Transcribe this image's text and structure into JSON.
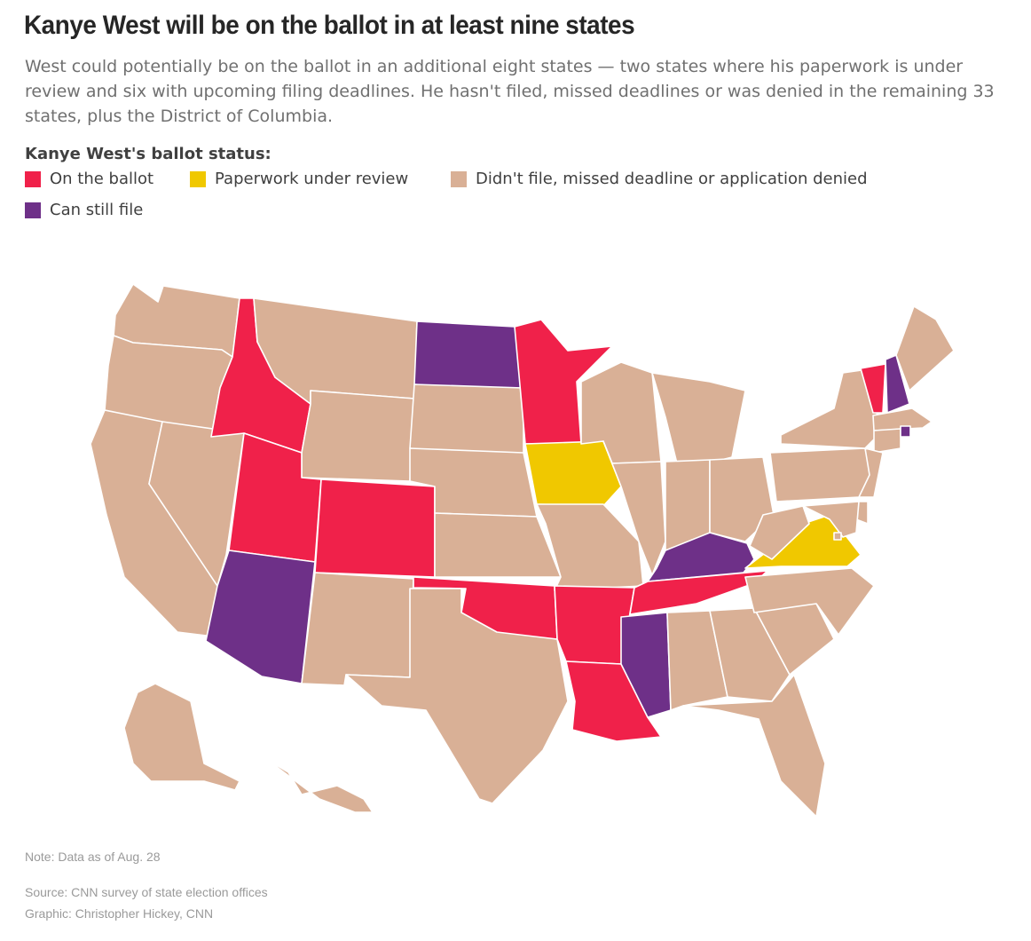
{
  "header": {
    "title": "Kanye West will be on the ballot in at least nine states",
    "subtitle": "West could potentially be on the ballot in an additional eight states — two states where his paperwork is under review and six with upcoming filing deadlines. He hasn't filed, missed deadlines or was denied in the remaining 33 states, plus the District of Columbia."
  },
  "legend": {
    "title": "Kanye West's ballot status:",
    "items": [
      {
        "key": "on_ballot",
        "label": "On the ballot",
        "color": "#f0214a"
      },
      {
        "key": "review",
        "label": "Paperwork under review",
        "color": "#f0c800"
      },
      {
        "key": "denied",
        "label": "Didn't file, missed deadline or application denied",
        "color": "#d9b096"
      },
      {
        "key": "can_file",
        "label": "Can still file",
        "color": "#6e3088"
      }
    ]
  },
  "status_colors": {
    "on_ballot": "#f0214a",
    "review": "#f0c800",
    "denied": "#d9b096",
    "can_file": "#6e3088"
  },
  "states": [
    {
      "id": "WA",
      "status": "denied"
    },
    {
      "id": "OR",
      "status": "denied"
    },
    {
      "id": "CA",
      "status": "denied"
    },
    {
      "id": "NV",
      "status": "denied"
    },
    {
      "id": "ID",
      "status": "on_ballot"
    },
    {
      "id": "MT",
      "status": "denied"
    },
    {
      "id": "WY",
      "status": "denied"
    },
    {
      "id": "UT",
      "status": "on_ballot"
    },
    {
      "id": "CO",
      "status": "on_ballot"
    },
    {
      "id": "AZ",
      "status": "can_file"
    },
    {
      "id": "NM",
      "status": "denied"
    },
    {
      "id": "ND",
      "status": "can_file"
    },
    {
      "id": "SD",
      "status": "denied"
    },
    {
      "id": "NE",
      "status": "denied"
    },
    {
      "id": "KS",
      "status": "denied"
    },
    {
      "id": "OK",
      "status": "on_ballot"
    },
    {
      "id": "TX",
      "status": "denied"
    },
    {
      "id": "MN",
      "status": "on_ballot"
    },
    {
      "id": "IA",
      "status": "review"
    },
    {
      "id": "MO",
      "status": "denied"
    },
    {
      "id": "AR",
      "status": "on_ballot"
    },
    {
      "id": "LA",
      "status": "on_ballot"
    },
    {
      "id": "WI",
      "status": "denied"
    },
    {
      "id": "IL",
      "status": "denied"
    },
    {
      "id": "MI",
      "status": "denied"
    },
    {
      "id": "IN",
      "status": "denied"
    },
    {
      "id": "OH",
      "status": "denied"
    },
    {
      "id": "KY",
      "status": "can_file"
    },
    {
      "id": "TN",
      "status": "on_ballot"
    },
    {
      "id": "MS",
      "status": "can_file"
    },
    {
      "id": "AL",
      "status": "denied"
    },
    {
      "id": "GA",
      "status": "denied"
    },
    {
      "id": "FL",
      "status": "denied"
    },
    {
      "id": "SC",
      "status": "denied"
    },
    {
      "id": "NC",
      "status": "denied"
    },
    {
      "id": "VA",
      "status": "review"
    },
    {
      "id": "WV",
      "status": "denied"
    },
    {
      "id": "PA",
      "status": "denied"
    },
    {
      "id": "NY",
      "status": "denied"
    },
    {
      "id": "VT",
      "status": "on_ballot"
    },
    {
      "id": "NH",
      "status": "can_file"
    },
    {
      "id": "ME",
      "status": "denied"
    },
    {
      "id": "MA",
      "status": "denied"
    },
    {
      "id": "CT",
      "status": "denied"
    },
    {
      "id": "RI",
      "status": "can_file"
    },
    {
      "id": "NJ",
      "status": "denied"
    },
    {
      "id": "DE",
      "status": "denied"
    },
    {
      "id": "MD",
      "status": "denied"
    },
    {
      "id": "DC",
      "status": "denied"
    },
    {
      "id": "AK",
      "status": "denied"
    },
    {
      "id": "HI",
      "status": "denied"
    }
  ],
  "footer": {
    "note": "Note: Data as of Aug. 28",
    "source": "Source: CNN survey of state election offices",
    "credit": "Graphic: Christopher Hickey, CNN"
  }
}
